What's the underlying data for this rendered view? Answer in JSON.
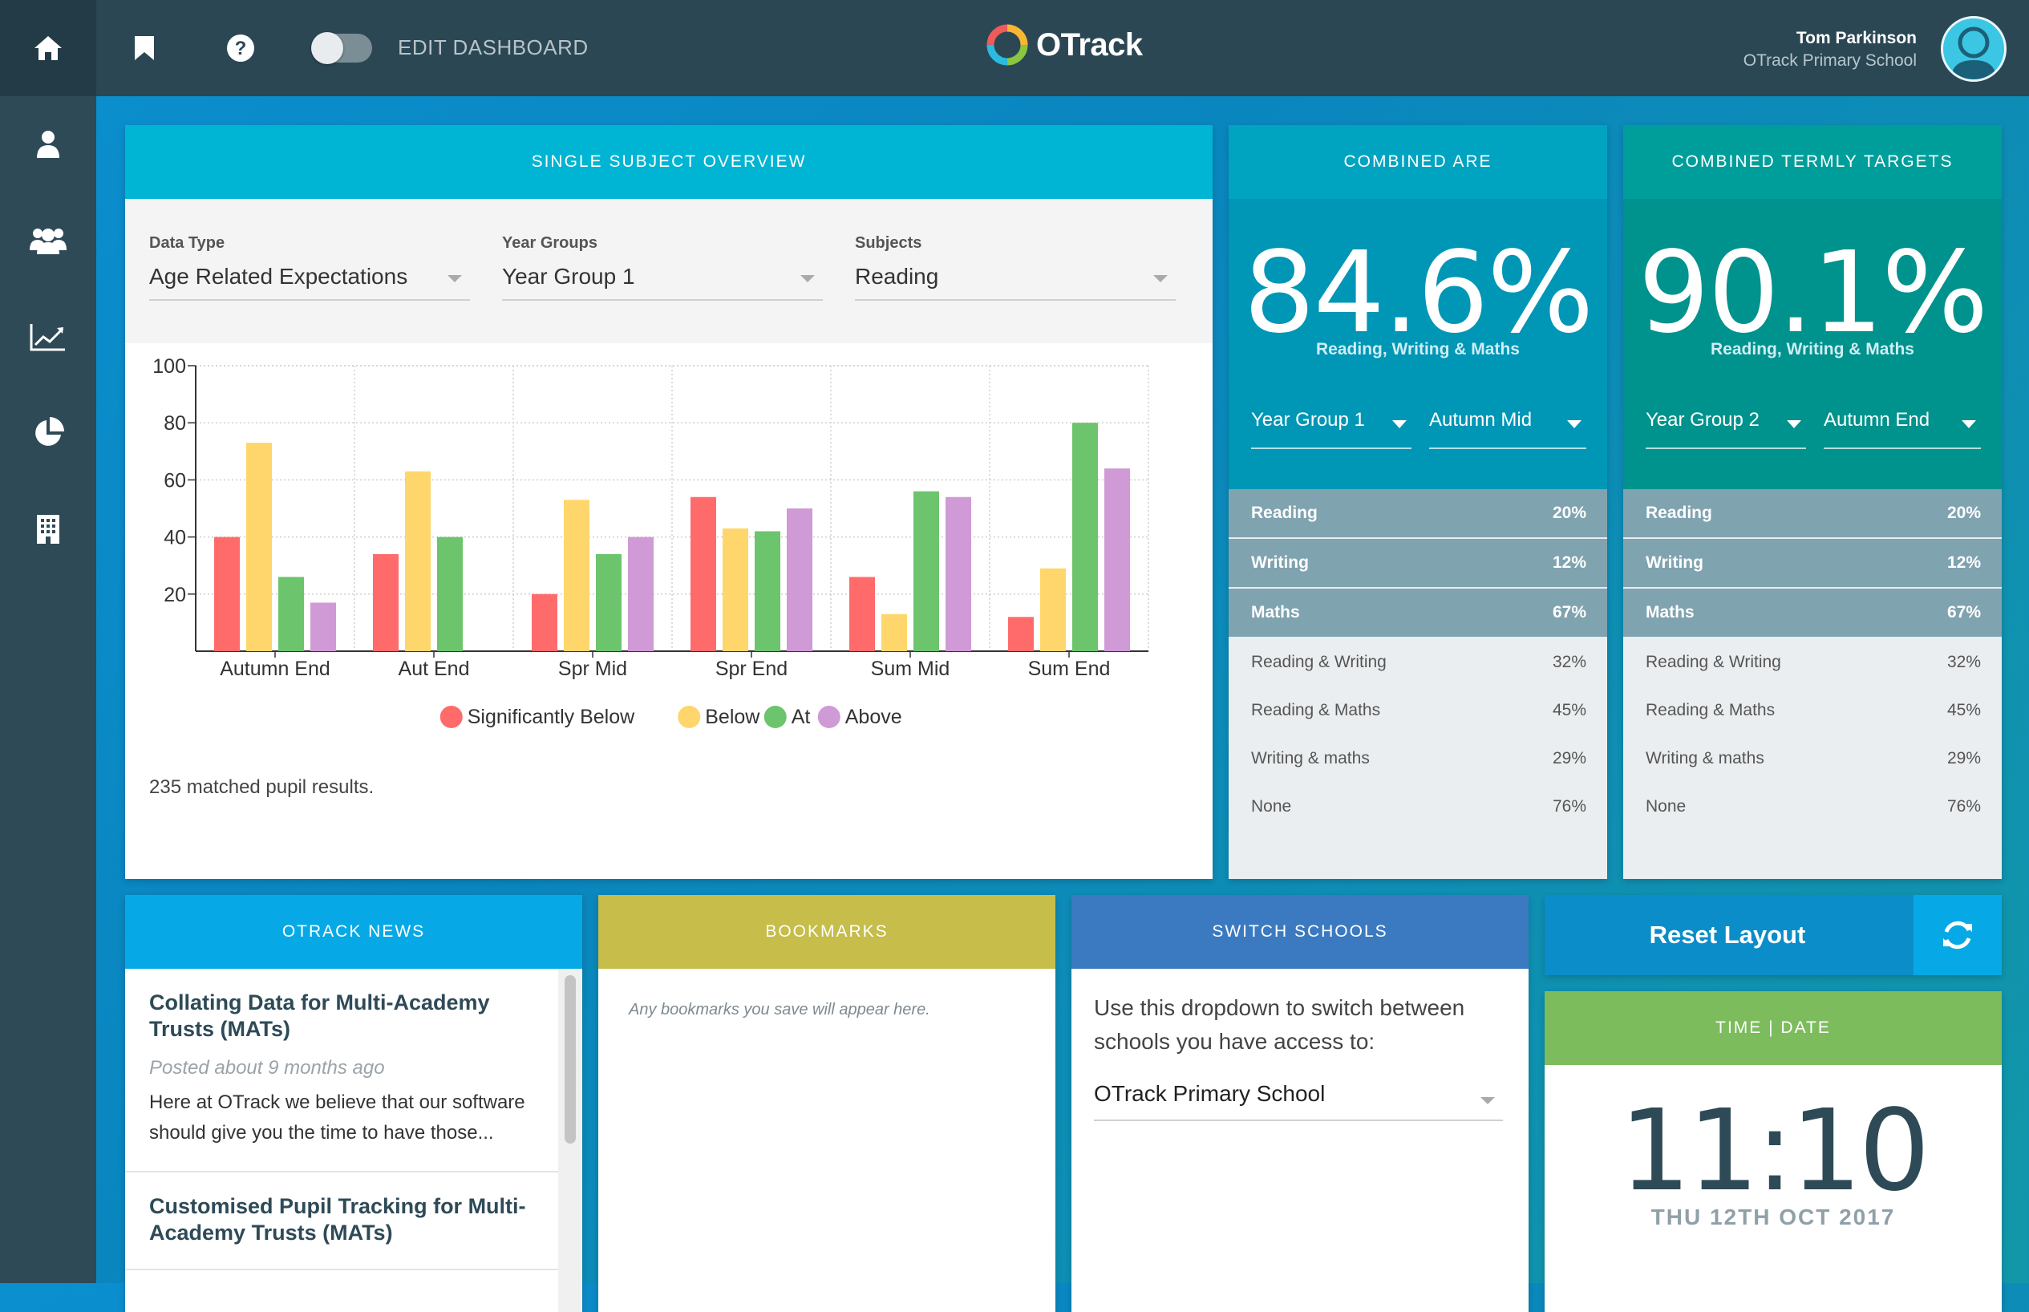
{
  "topbar": {
    "edit_dashboard_label": "EDIT DASHBOARD",
    "logo_text": "OTrack",
    "user_name": "Tom Parkinson",
    "user_school": "OTrack Primary School"
  },
  "sidebar": {
    "items": [
      {
        "icon": "home-icon"
      },
      {
        "icon": "person-icon"
      },
      {
        "icon": "group-icon"
      },
      {
        "icon": "line-chart-icon"
      },
      {
        "icon": "pie-chart-icon"
      },
      {
        "icon": "building-icon"
      }
    ]
  },
  "single_subject": {
    "title": "SINGLE SUBJECT OVERVIEW",
    "data_type_label": "Data Type",
    "data_type_value": "Age Related Expectations",
    "year_groups_label": "Year Groups",
    "year_groups_value": "Year Group 1",
    "subjects_label": "Subjects",
    "subjects_value": "Reading",
    "matched_results": "235 matched pupil results."
  },
  "chart_data": {
    "type": "bar",
    "categories": [
      "Autumn End",
      "Aut End",
      "Spr Mid",
      "Spr End",
      "Sum Mid",
      "Sum End"
    ],
    "series": [
      {
        "name": "Significantly Below",
        "color": "#ff6b6b",
        "values": [
          40,
          34,
          20,
          54,
          26,
          12
        ]
      },
      {
        "name": "Below",
        "color": "#ffd66b",
        "values": [
          73,
          63,
          53,
          43,
          13,
          29
        ]
      },
      {
        "name": "At",
        "color": "#6cc46c",
        "values": [
          26,
          40,
          34,
          42,
          56,
          80
        ]
      },
      {
        "name": "Above",
        "color": "#cf9ad6",
        "values": [
          17,
          0,
          40,
          50,
          54,
          64
        ]
      }
    ],
    "y_ticks": [
      "20",
      "40",
      "60",
      "80",
      "100"
    ],
    "ylim": [
      0,
      100
    ],
    "grid": true,
    "legend": "bottom"
  },
  "combined_are": {
    "title": "COMBINED ARE",
    "value": "84.6%",
    "subtitle": "Reading, Writing & Maths",
    "year_group": "Year Group 1",
    "term": "Autumn Mid",
    "rows": [
      {
        "label": "Reading",
        "value": "20%"
      },
      {
        "label": "Writing",
        "value": "12%"
      },
      {
        "label": "Maths",
        "value": "67%"
      },
      {
        "label": "Reading & Writing",
        "value": "32%"
      },
      {
        "label": "Reading & Maths",
        "value": "45%"
      },
      {
        "label": "Writing & maths",
        "value": "29%"
      },
      {
        "label": "None",
        "value": "76%"
      }
    ]
  },
  "combined_targets": {
    "title": "COMBINED TERMLY TARGETS",
    "value": "90.1%",
    "subtitle": "Reading, Writing & Maths",
    "year_group": "Year Group 2",
    "term": "Autumn End",
    "rows": [
      {
        "label": "Reading",
        "value": "20%"
      },
      {
        "label": "Writing",
        "value": "12%"
      },
      {
        "label": "Maths",
        "value": "67%"
      },
      {
        "label": "Reading & Writing",
        "value": "32%"
      },
      {
        "label": "Reading & Maths",
        "value": "45%"
      },
      {
        "label": "Writing & maths",
        "value": "29%"
      },
      {
        "label": "None",
        "value": "76%"
      }
    ]
  },
  "news": {
    "title": "OTRACK NEWS",
    "items": [
      {
        "title": "Collating Data for Multi-Academy Trusts (MATs)",
        "date": "Posted about 9 months ago",
        "body": "Here at OTrack we believe that our software should give you the time to have those..."
      },
      {
        "title": "Customised Pupil Tracking for Multi-Academy Trusts (MATs)",
        "date": "",
        "body": ""
      }
    ]
  },
  "bookmarks": {
    "title": "BOOKMARKS",
    "empty_message": "Any bookmarks you save will appear here."
  },
  "switch_schools": {
    "title": "SWITCH SCHOOLS",
    "message": "Use this dropdown to switch between schools you have access to:",
    "selected": "OTrack Primary School"
  },
  "reset_layout": {
    "label": "Reset Layout"
  },
  "time_date": {
    "title": "TIME | DATE",
    "time": "11:10",
    "date": "THU 12TH OCT 2017"
  }
}
